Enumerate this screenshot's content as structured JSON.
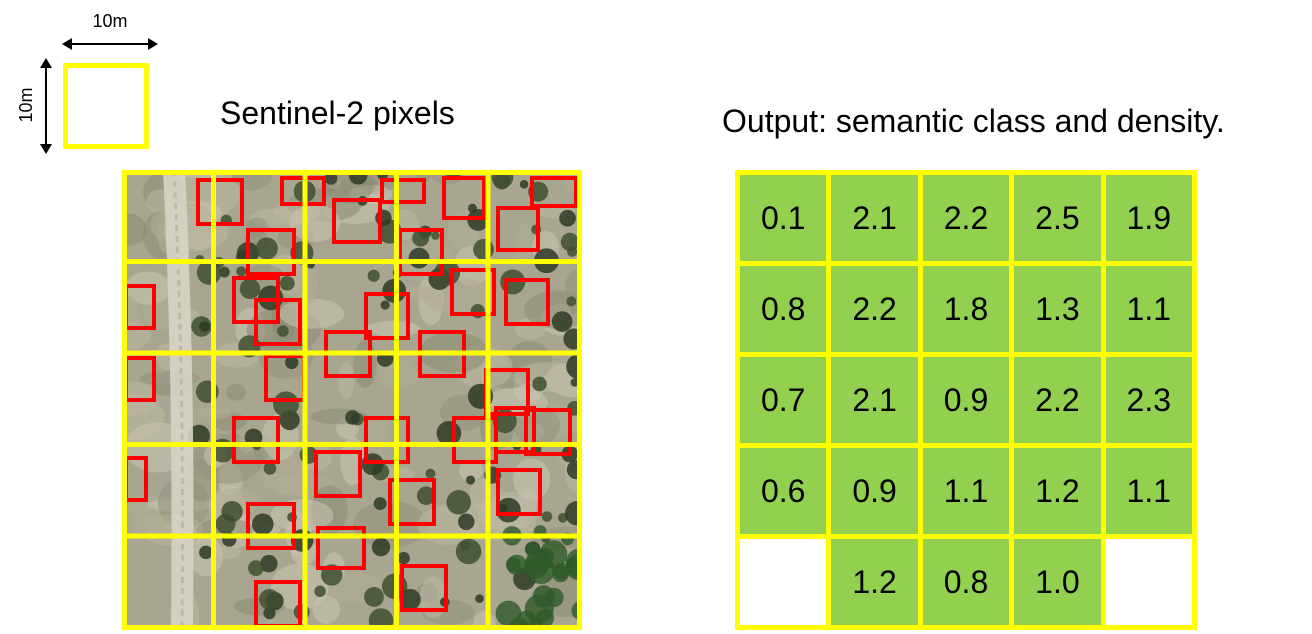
{
  "colors": {
    "pixel_grid": "#ffff00",
    "tree_box": "#ff0000",
    "class_fill": "#92d050",
    "no_class": "#ffffff"
  },
  "legend": {
    "width_label": "10m",
    "height_label": "10m",
    "title": "Sentinel-2 pixels"
  },
  "output": {
    "title": "Output: semantic class and density.",
    "rows": [
      [
        "0.1",
        "2.1",
        "2.2",
        "2.5",
        "1.9"
      ],
      [
        "0.8",
        "2.2",
        "1.8",
        "1.3",
        "1.1"
      ],
      [
        "0.7",
        "2.1",
        "0.9",
        "2.2",
        "2.3"
      ],
      [
        "0.6",
        "0.9",
        "1.1",
        "1.2",
        "1.1"
      ],
      [
        "",
        "1.2",
        "0.8",
        "1.0",
        ""
      ]
    ]
  }
}
